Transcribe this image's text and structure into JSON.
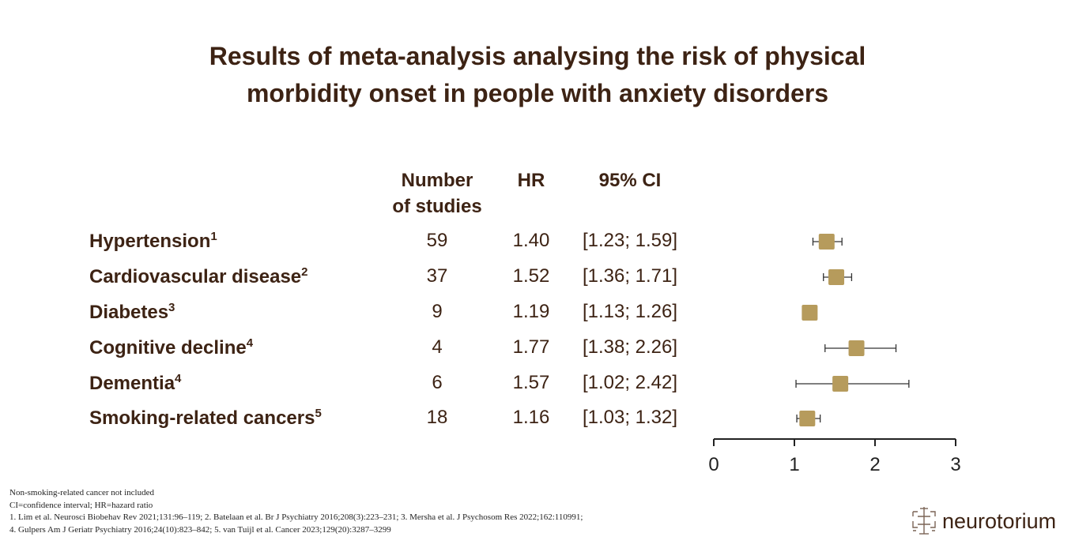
{
  "title_line1": "Results of meta-analysis analysing the risk of physical",
  "title_line2": "morbidity onset in people with anxiety disorders",
  "headers": {
    "studies_line1": "Number",
    "studies_line2": "of studies",
    "hr": "HR",
    "ci": "95% CI"
  },
  "chart_data": {
    "type": "forest",
    "title": "Results of meta-analysis analysing the risk of physical morbidity onset in people with anxiety disorders",
    "xlim": [
      0,
      3
    ],
    "xticks": [
      "0",
      "1",
      "2",
      "3"
    ],
    "marker_color": "#b69b5c",
    "rows": [
      {
        "label": "Hypertension",
        "ref": "1",
        "studies": "59",
        "hr": 1.4,
        "hr_text": "1.40",
        "lo": 1.23,
        "hi": 1.59,
        "ci_text": "[1.23; 1.59]"
      },
      {
        "label": "Cardiovascular disease",
        "ref": "2",
        "studies": "37",
        "hr": 1.52,
        "hr_text": "1.52",
        "lo": 1.36,
        "hi": 1.71,
        "ci_text": "[1.36; 1.71]"
      },
      {
        "label": "Diabetes",
        "ref": "3",
        "studies": "9",
        "hr": 1.19,
        "hr_text": "1.19",
        "lo": 1.13,
        "hi": 1.26,
        "ci_text": "[1.13; 1.26]"
      },
      {
        "label": "Cognitive decline",
        "ref": "4",
        "studies": "4",
        "hr": 1.77,
        "hr_text": "1.77",
        "lo": 1.38,
        "hi": 2.26,
        "ci_text": "[1.38; 2.26]"
      },
      {
        "label": "Dementia",
        "ref": "4",
        "studies": "6",
        "hr": 1.57,
        "hr_text": "1.57",
        "lo": 1.02,
        "hi": 2.42,
        "ci_text": "[1.02; 2.42]"
      },
      {
        "label": "Smoking-related cancers",
        "ref": "5",
        "studies": "18",
        "hr": 1.16,
        "hr_text": "1.16",
        "lo": 1.03,
        "hi": 1.32,
        "ci_text": "[1.03; 1.32]"
      }
    ]
  },
  "footnotes": [
    "Non-smoking-related cancer not included",
    "CI=confidence interval; HR=hazard ratio",
    "1. Lim et al. Neurosci Biobehav Rev 2021;131:96–119; 2. Batelaan et al. Br J Psychiatry 2016;208(3):223–231; 3. Mersha et al. J Psychosom Res 2022;162:110991;",
    "4. Gulpers Am J Geriatr Psychiatry 2016;24(10):823–842; 5. van Tuijl et al. Cancer 2023;129(20):3287–3299"
  ],
  "logo": {
    "text": "neurotorium",
    "icon": "neurotorium-logo-icon"
  }
}
